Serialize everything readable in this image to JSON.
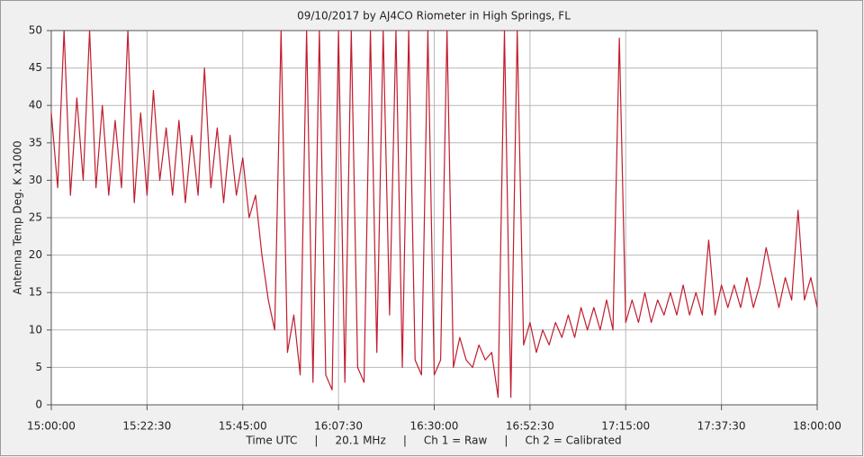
{
  "chart_data": {
    "type": "line",
    "title": "09/10/2017  by  AJ4CO Riometer  in  High Springs, FL",
    "y_label": "Antenna Temp Deg. K x1000",
    "x_label": "Time UTC     |     20.1 MHz     |     Ch 1 = Raw     |     Ch 2 = Calibrated",
    "x": [
      "15:00:00",
      "15:01:30",
      "15:03:00",
      "15:04:30",
      "15:06:00",
      "15:07:30",
      "15:09:00",
      "15:10:30",
      "15:12:00",
      "15:13:30",
      "15:15:00",
      "15:16:30",
      "15:18:00",
      "15:19:30",
      "15:21:00",
      "15:22:30",
      "15:24:00",
      "15:25:30",
      "15:27:00",
      "15:28:30",
      "15:30:00",
      "15:31:30",
      "15:33:00",
      "15:34:30",
      "15:36:00",
      "15:37:30",
      "15:39:00",
      "15:40:30",
      "15:42:00",
      "15:43:30",
      "15:45:00",
      "15:46:30",
      "15:48:00",
      "15:49:30",
      "15:51:00",
      "15:52:30",
      "15:54:00",
      "15:55:30",
      "15:57:00",
      "15:58:30",
      "16:00:00",
      "16:01:30",
      "16:03:00",
      "16:04:30",
      "16:06:00",
      "16:07:30",
      "16:09:00",
      "16:10:30",
      "16:12:00",
      "16:13:30",
      "16:15:00",
      "16:16:30",
      "16:18:00",
      "16:19:30",
      "16:21:00",
      "16:22:30",
      "16:24:00",
      "16:25:30",
      "16:27:00",
      "16:28:30",
      "16:30:00",
      "16:31:30",
      "16:33:00",
      "16:34:30",
      "16:36:00",
      "16:37:30",
      "16:39:00",
      "16:40:30",
      "16:42:00",
      "16:43:30",
      "16:45:00",
      "16:46:30",
      "16:48:00",
      "16:49:30",
      "16:51:00",
      "16:52:30",
      "16:54:00",
      "16:55:30",
      "16:57:00",
      "16:58:30",
      "17:00:00",
      "17:01:30",
      "17:03:00",
      "17:04:30",
      "17:06:00",
      "17:07:30",
      "17:09:00",
      "17:10:30",
      "17:12:00",
      "17:13:30",
      "17:15:00",
      "17:16:30",
      "17:18:00",
      "17:19:30",
      "17:21:00",
      "17:22:30",
      "17:24:00",
      "17:25:30",
      "17:27:00",
      "17:28:30",
      "17:30:00",
      "17:31:30",
      "17:33:00",
      "17:34:30",
      "17:36:00",
      "17:37:30",
      "17:39:00",
      "17:40:30",
      "17:42:00",
      "17:43:30",
      "17:45:00",
      "17:46:30",
      "17:48:00",
      "17:49:30",
      "17:51:00",
      "17:52:30",
      "17:54:00",
      "17:55:30",
      "17:57:00",
      "17:58:30",
      "18:00:00"
    ],
    "series": [
      {
        "name": "Ch 1",
        "color": "#c01c2e",
        "values": [
          39,
          29,
          50,
          28,
          41,
          30,
          50,
          29,
          40,
          28,
          38,
          29,
          50,
          27,
          39,
          28,
          42,
          30,
          37,
          28,
          38,
          27,
          36,
          28,
          45,
          29,
          37,
          27,
          36,
          28,
          33,
          25,
          28,
          20,
          14,
          10,
          50,
          7,
          12,
          4,
          50,
          3,
          50,
          4,
          2,
          50,
          3,
          50,
          5,
          3,
          50,
          7,
          50,
          12,
          50,
          5,
          50,
          6,
          4,
          50,
          4,
          6,
          50,
          5,
          9,
          6,
          5,
          8,
          6,
          7,
          1,
          50,
          1,
          50,
          8,
          11,
          7,
          10,
          8,
          11,
          9,
          12,
          9,
          13,
          10,
          13,
          10,
          14,
          10,
          49,
          11,
          14,
          11,
          15,
          11,
          14,
          12,
          15,
          12,
          16,
          12,
          15,
          12,
          22,
          12,
          16,
          13,
          16,
          13,
          17,
          13,
          16,
          21,
          17,
          13,
          17,
          14,
          26,
          14,
          17,
          13
        ]
      }
    ],
    "xlim": [
      "15:00:00",
      "18:00:00"
    ],
    "xticks": [
      "15:00:00",
      "15:22:30",
      "15:45:00",
      "16:07:30",
      "16:30:00",
      "16:52:30",
      "17:15:00",
      "17:37:30",
      "18:00:00"
    ],
    "ylim": [
      0,
      50
    ],
    "yticks": [
      0,
      5,
      10,
      15,
      20,
      25,
      30,
      35,
      40,
      45,
      50
    ],
    "grid": true
  }
}
